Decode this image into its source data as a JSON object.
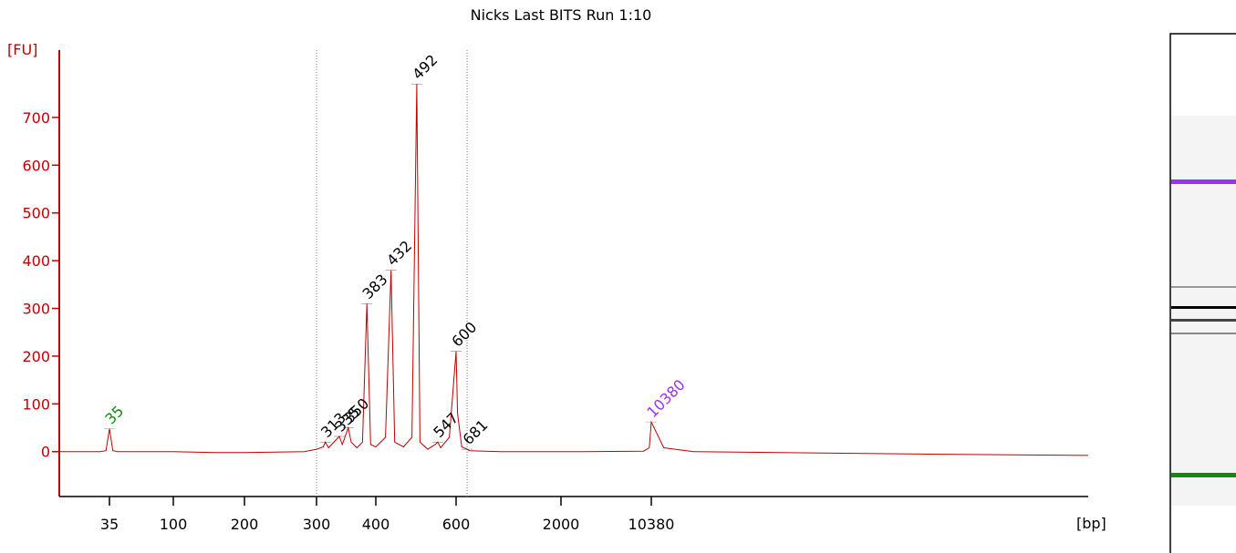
{
  "chart_data": {
    "type": "line",
    "title": "Nicks Last BITS Run 1:10",
    "y_label": "[FU]",
    "x_label": "[bp]",
    "xlim": [
      15,
      30000
    ],
    "xticks": [
      35,
      100,
      200,
      300,
      400,
      600,
      2000,
      10380
    ],
    "ylim": [
      -94,
      841
    ],
    "yticks": [
      0,
      100,
      200,
      300,
      400,
      500,
      600,
      700
    ],
    "regions": [
      300,
      681
    ],
    "series": [
      {
        "color": "#c00000",
        "x": [
          15,
          30,
          33,
          35,
          37,
          40,
          100,
          150,
          200,
          280,
          300,
          310,
          313,
          318,
          330,
          335,
          340,
          350,
          355,
          365,
          375,
          383,
          390,
          400,
          420,
          432,
          440,
          460,
          480,
          492,
          500,
          520,
          540,
          547,
          555,
          580,
          600,
          610,
          640,
          681,
          700,
          1000,
          3000,
          9000,
          10000,
          10380,
          10700,
          11500,
          20000,
          30000
        ],
        "values": [
          0,
          0,
          2,
          48,
          2,
          0,
          0,
          -2,
          -2,
          0,
          5,
          10,
          20,
          8,
          25,
          32,
          15,
          50,
          20,
          8,
          20,
          310,
          15,
          10,
          30,
          380,
          20,
          10,
          30,
          770,
          20,
          5,
          15,
          20,
          8,
          30,
          210,
          80,
          10,
          5,
          2,
          0,
          0,
          1,
          8,
          62,
          8,
          0,
          -5,
          -8
        ]
      }
    ],
    "peaks": {
      "x": [
        35,
        313,
        335,
        350,
        383,
        432,
        492,
        547,
        600,
        681,
        10380
      ],
      "values": [
        48,
        20,
        32,
        50,
        310,
        380,
        770,
        20,
        210,
        5,
        62
      ],
      "colors": [
        "#118811",
        "#000000",
        "#000000",
        "#000000",
        "#000000",
        "#000000",
        "#000000",
        "#000000",
        "#000000",
        "#000000",
        "#9933ee"
      ]
    }
  }
}
